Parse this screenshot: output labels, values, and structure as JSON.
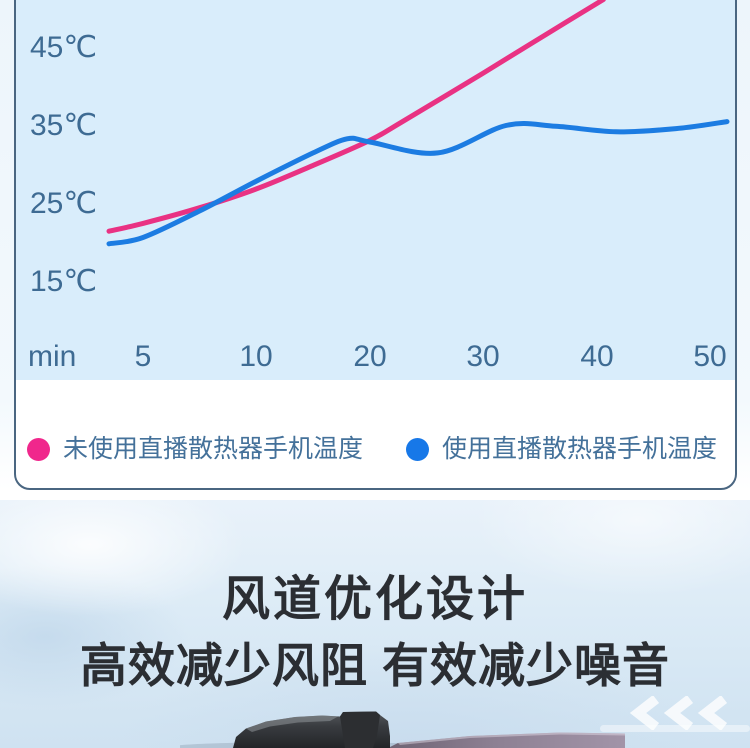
{
  "chart_card": {
    "plot_bg": "#D9EDFB",
    "border_color": "#4A6681",
    "axis_label_color": "#3E6B93",
    "y_axis_labels": [
      "45℃",
      "35℃",
      "25℃",
      "15℃"
    ],
    "x_axis_labels": [
      "min",
      "5",
      "10",
      "20",
      "30",
      "40",
      "50"
    ],
    "legend": [
      {
        "label": "未使用直播散热器手机温度",
        "color": "#F0278C"
      },
      {
        "label": "使用直播散热器手机温度",
        "color": "#1778E8"
      }
    ]
  },
  "chart_data": {
    "type": "line",
    "title": "",
    "xlabel": "min",
    "ylabel": "℃",
    "x_axis": {
      "ticks": [
        5,
        10,
        20,
        30,
        40,
        50
      ],
      "note": "ticks equally spaced on screen; 5-minute steps up to 10 min, then 10-minute steps"
    },
    "y_axis": {
      "ticks": [
        15,
        25,
        35,
        45
      ],
      "unit": "℃",
      "visible_range": [
        12,
        51
      ]
    },
    "grid": false,
    "legend_position": "bottom",
    "series": [
      {
        "name": "未使用直播散热器手机温度",
        "color": "#E93283",
        "points": [
          [
            3.5,
            21.6
          ],
          [
            5,
            22.6
          ],
          [
            7.5,
            24.6
          ],
          [
            10,
            27.0
          ],
          [
            15,
            30.0
          ],
          [
            20,
            33.2
          ],
          [
            23,
            35.7
          ],
          [
            30,
            41.8
          ],
          [
            35.5,
            46.7
          ],
          [
            40.6,
            51.2
          ]
        ]
      },
      {
        "name": "使用直播散热器手机温度",
        "color": "#1C7CE2",
        "points": [
          [
            3.5,
            20.0
          ],
          [
            5,
            20.8
          ],
          [
            7.5,
            24.2
          ],
          [
            10,
            28.0
          ],
          [
            15,
            31.6
          ],
          [
            18,
            33.4
          ],
          [
            20,
            33.0
          ],
          [
            26,
            31.6
          ],
          [
            32,
            35.1
          ],
          [
            36.4,
            35.0
          ],
          [
            41.7,
            34.3
          ],
          [
            47,
            34.7
          ],
          [
            51.5,
            35.6
          ]
        ]
      }
    ]
  },
  "section": {
    "title": "风道优化设计",
    "subtitle": "高效减少风阻 有效减少噪音",
    "title_color": "#2B2E33"
  }
}
